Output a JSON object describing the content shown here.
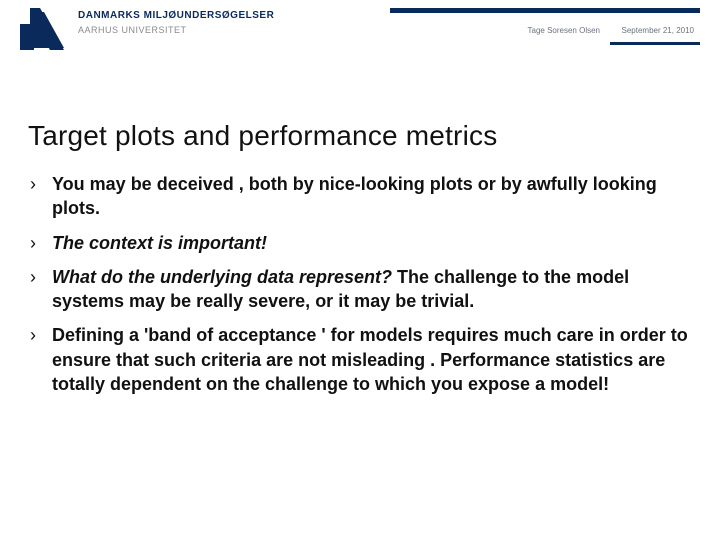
{
  "header": {
    "institution_primary": "DANMARKS MILJØUNDERSØGELSER",
    "institution_secondary": "AARHUS UNIVERSITET",
    "presenter": "Tage Soresen Olsen",
    "date": "September 21, 2010",
    "logo_color": "#0a2a5c",
    "bar_color": "#0a2a5c"
  },
  "title": "Target plots and performance metrics",
  "bullets": [
    {
      "parts": [
        {
          "text": "You may be deceived , both by nice-looking  plots or by awfully  looking  plots.",
          "style": "bold"
        }
      ]
    },
    {
      "parts": [
        {
          "text": "The context is important!",
          "style": "ital"
        }
      ]
    },
    {
      "parts": [
        {
          "text": "What do the underlying data represent? ",
          "style": "ital"
        },
        {
          "text": "The challenge  to the model systems  may be really  severe, or it may be trivial.",
          "style": "bold"
        }
      ]
    },
    {
      "parts": [
        {
          "text": "Defining  a 'band of  acceptance ' for models  requires much care in order to ensure that such criteria are not misleading . Performance  statistics are totally dependent on the challenge  to which  you expose  a model!",
          "style": "bold"
        }
      ]
    }
  ],
  "colors": {
    "text": "#111111",
    "muted": "#8a8a8a",
    "background": "#ffffff"
  }
}
